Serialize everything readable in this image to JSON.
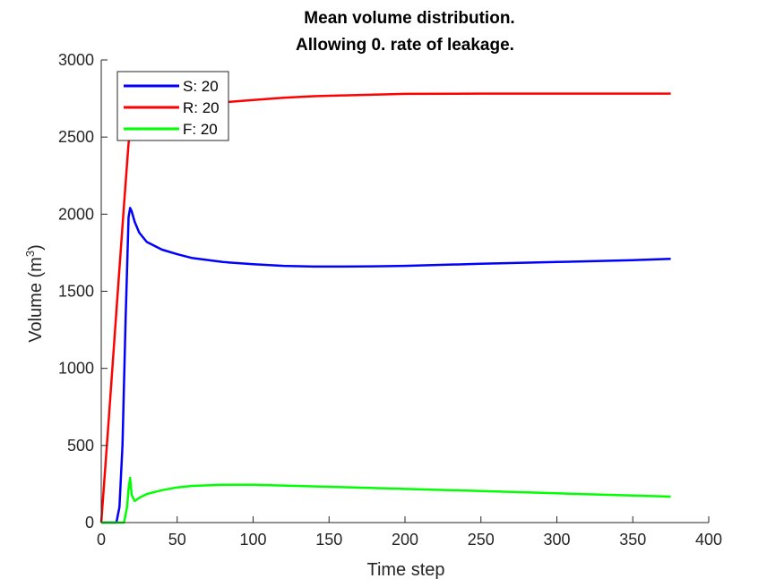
{
  "chart_data": {
    "type": "line",
    "title": [
      "Mean volume distribution.",
      "Allowing 0. rate of leakage."
    ],
    "xlabel": "Time step",
    "ylabel": "Volume (m",
    "ylabel_sup": "3",
    "ylabel_close": ")",
    "xlim": [
      0,
      400
    ],
    "ylim": [
      0,
      3000
    ],
    "xticks": [
      0,
      50,
      100,
      150,
      200,
      250,
      300,
      350,
      400
    ],
    "yticks": [
      0,
      500,
      1000,
      1500,
      2000,
      2500,
      3000
    ],
    "grid": false,
    "legend_position": "top-left",
    "series": [
      {
        "name": "S: 20",
        "color": "#0000ff",
        "x": [
          0,
          8,
          10,
          12,
          14,
          16,
          18,
          19,
          20,
          22,
          25,
          30,
          40,
          50,
          60,
          80,
          100,
          120,
          140,
          160,
          180,
          200,
          250,
          300,
          350,
          375
        ],
        "y": [
          0,
          0,
          0,
          100,
          500,
          1300,
          1980,
          2040,
          2020,
          1950,
          1880,
          1820,
          1770,
          1740,
          1715,
          1690,
          1675,
          1665,
          1660,
          1660,
          1662,
          1665,
          1678,
          1690,
          1702,
          1710
        ]
      },
      {
        "name": "R: 20",
        "color": "#ff0000",
        "x": [
          0,
          2,
          5,
          10,
          15,
          18,
          20,
          25,
          30,
          40,
          50,
          60,
          80,
          100,
          120,
          140,
          160,
          200,
          250,
          300,
          350,
          375
        ],
        "y": [
          0,
          270,
          680,
          1370,
          2060,
          2460,
          2600,
          2660,
          2680,
          2690,
          2700,
          2710,
          2725,
          2740,
          2755,
          2765,
          2770,
          2780,
          2782,
          2782,
          2782,
          2782
        ]
      },
      {
        "name": "F: 20",
        "color": "#00ff00",
        "x": [
          0,
          15,
          17,
          18,
          19,
          20,
          22,
          25,
          30,
          40,
          50,
          60,
          80,
          100,
          150,
          200,
          250,
          300,
          350,
          375
        ],
        "y": [
          0,
          0,
          100,
          220,
          290,
          180,
          140,
          160,
          185,
          210,
          228,
          238,
          245,
          245,
          232,
          218,
          205,
          190,
          175,
          168
        ]
      }
    ]
  }
}
